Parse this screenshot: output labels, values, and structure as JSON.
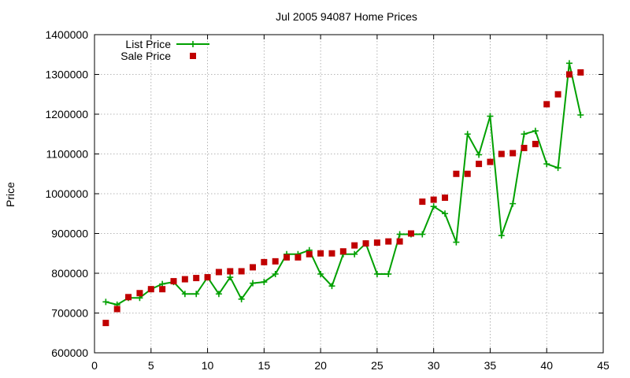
{
  "chart_data": {
    "type": "line",
    "title": "Jul 2005 94087 Home Prices",
    "xlabel": "",
    "ylabel": "Price",
    "xlim": [
      0,
      45
    ],
    "ylim": [
      600000,
      1400000
    ],
    "xticks": [
      0,
      5,
      10,
      15,
      20,
      25,
      30,
      35,
      40,
      45
    ],
    "yticks": [
      600000,
      700000,
      800000,
      900000,
      1000000,
      1100000,
      1200000,
      1300000,
      1400000
    ],
    "xtick_labels": [
      "0",
      "5",
      "10",
      "15",
      "20",
      "25",
      "30",
      "35",
      "40",
      "45"
    ],
    "ytick_labels": [
      "600000",
      "700000",
      "800000",
      "900000",
      "1000000",
      "1100000",
      "1200000",
      "1300000",
      "1400000"
    ],
    "grid": true,
    "legend_position": "top-left",
    "x": [
      1,
      2,
      3,
      4,
      5,
      6,
      7,
      8,
      9,
      10,
      11,
      12,
      13,
      14,
      15,
      16,
      17,
      18,
      19,
      20,
      21,
      22,
      23,
      24,
      25,
      26,
      27,
      28,
      29,
      30,
      31,
      32,
      33,
      34,
      35,
      36,
      37,
      38,
      39,
      40,
      41,
      42,
      43
    ],
    "series": [
      {
        "name": "List Price",
        "style": "linespoints",
        "color": "#00a000",
        "values": [
          728000,
          721000,
          738000,
          738000,
          760000,
          773000,
          778000,
          748000,
          748000,
          790000,
          748000,
          790000,
          735000,
          775000,
          778000,
          798000,
          848000,
          848000,
          858000,
          798000,
          768000,
          848000,
          848000,
          875000,
          798000,
          798000,
          898000,
          898000,
          898000,
          968000,
          950000,
          878000,
          1150000,
          1098000,
          1195000,
          895000,
          975000,
          1150000,
          1158000,
          1075000,
          1065000,
          1328000,
          1198000
        ]
      },
      {
        "name": "Sale Price",
        "style": "points",
        "color": "#c00000",
        "values": [
          675000,
          710000,
          740000,
          750000,
          760000,
          760000,
          780000,
          785000,
          788000,
          790000,
          803000,
          805000,
          805000,
          815000,
          828000,
          830000,
          840000,
          840000,
          848000,
          850000,
          850000,
          855000,
          870000,
          875000,
          877000,
          880000,
          880000,
          900000,
          980000,
          985000,
          990000,
          1050000,
          1050000,
          1075000,
          1080000,
          1100000,
          1102000,
          1115000,
          1125000,
          1225000,
          1250000,
          1300000,
          1305000
        ]
      }
    ]
  }
}
